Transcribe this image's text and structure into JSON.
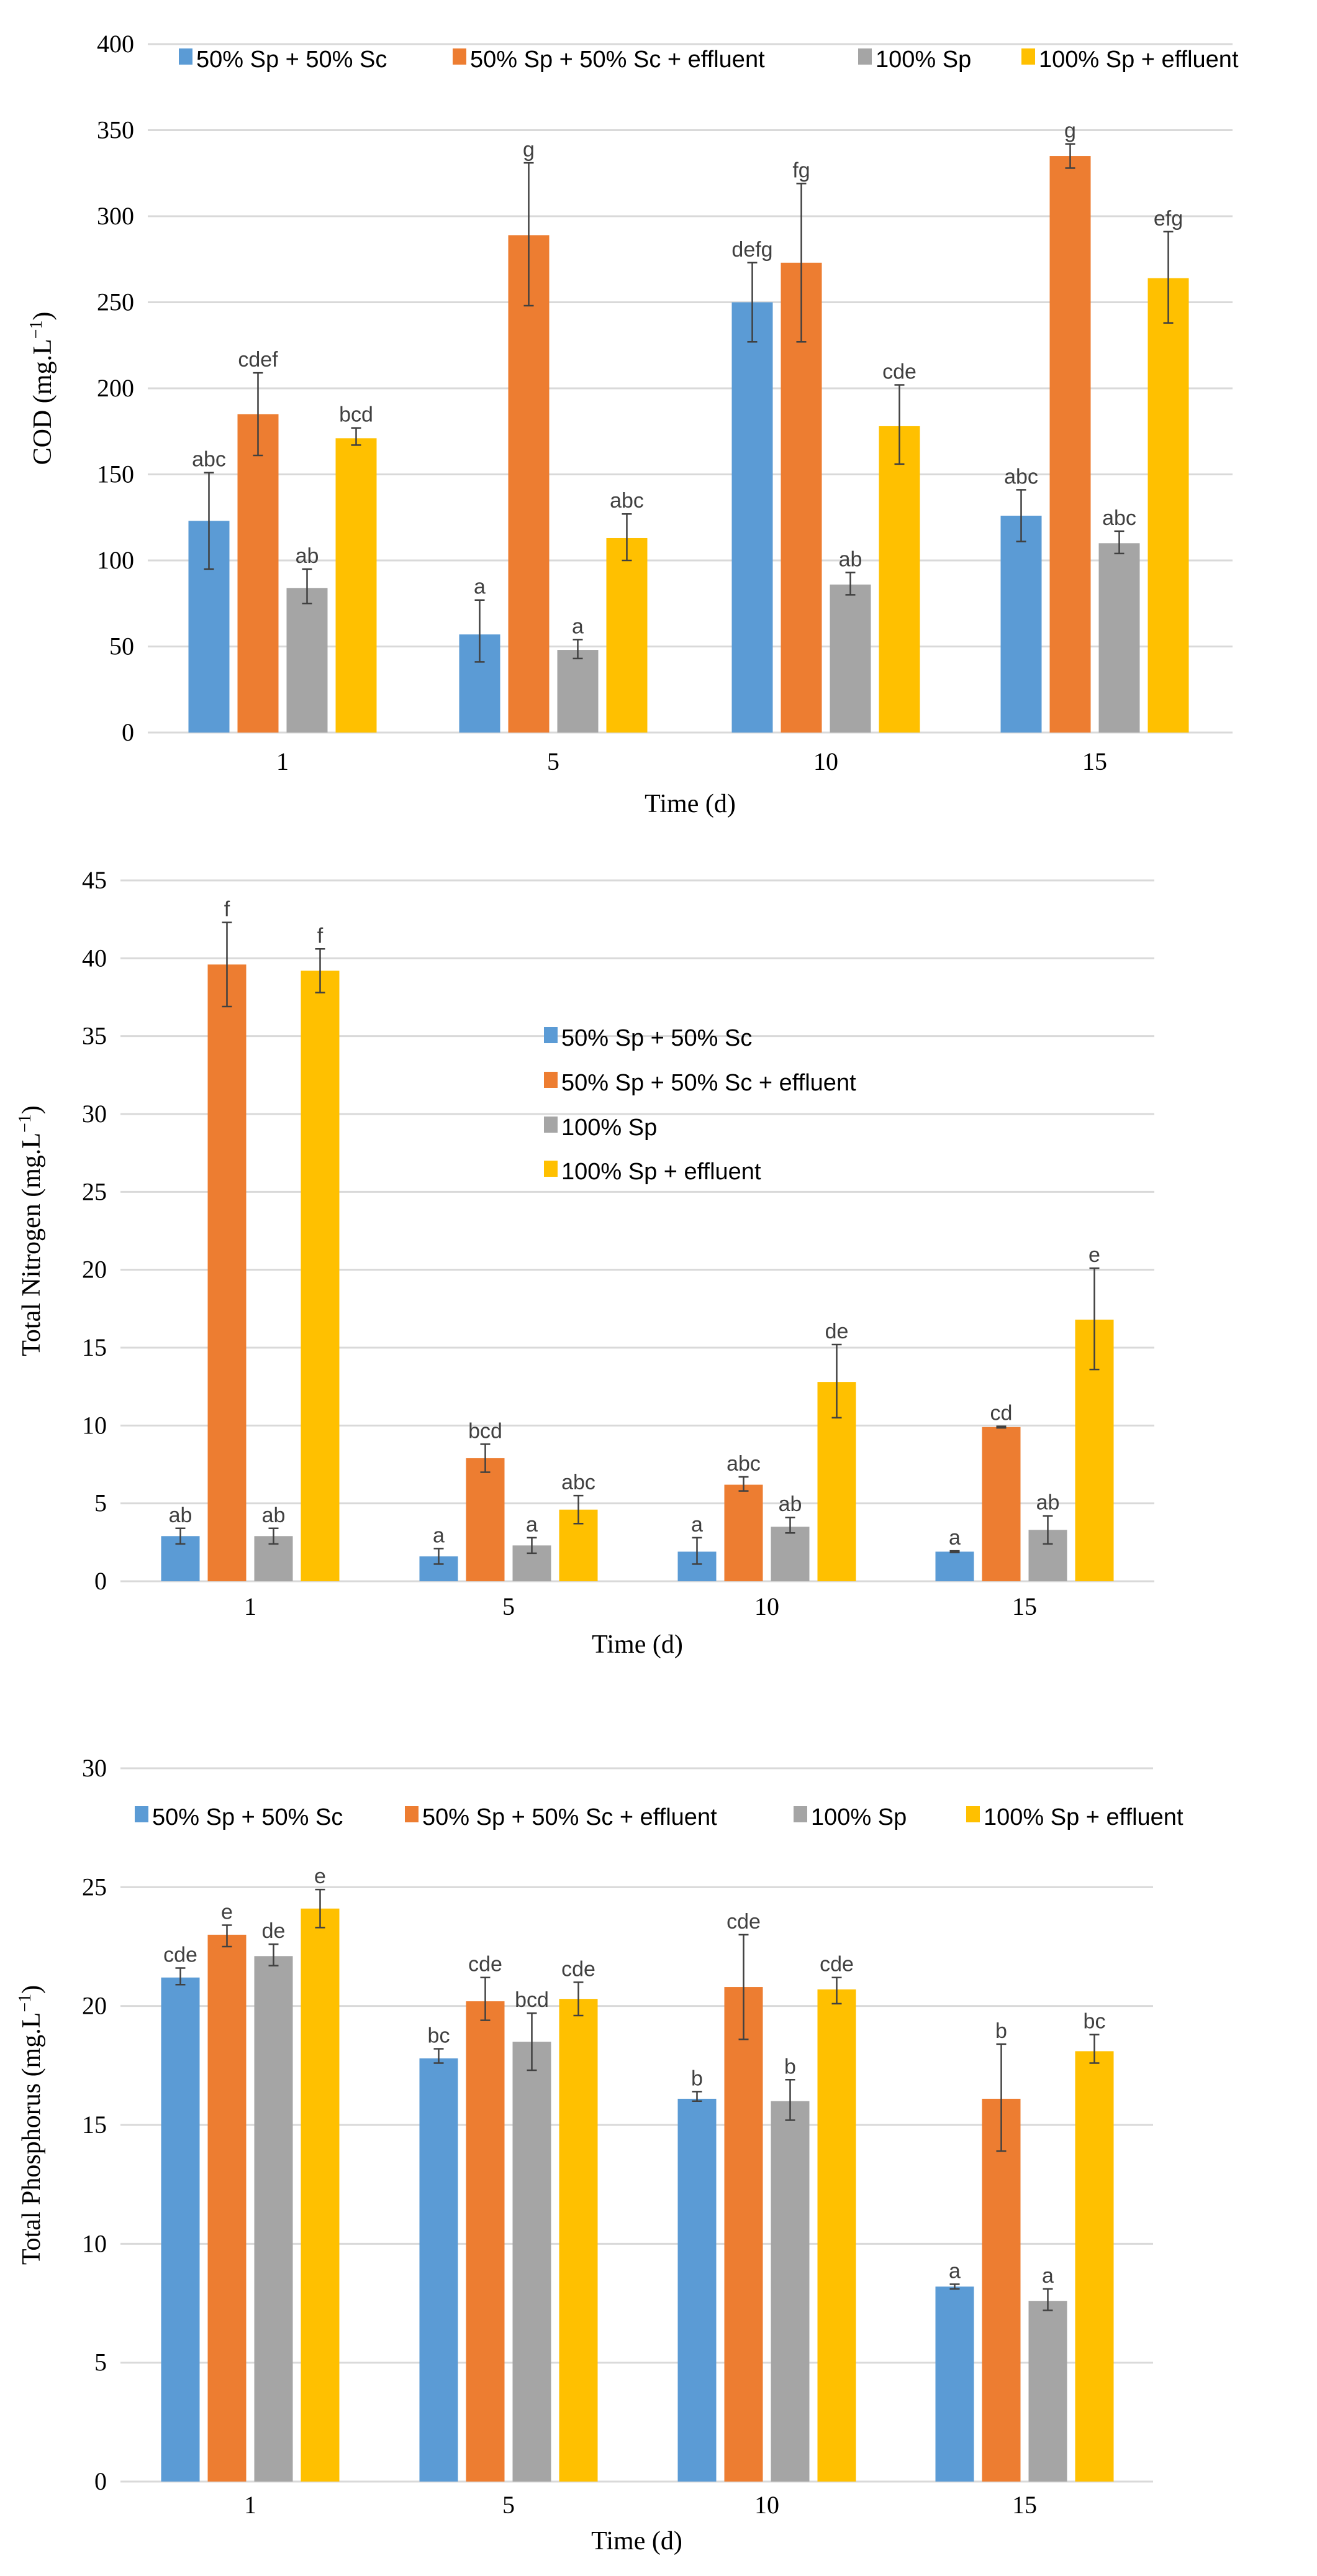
{
  "colors": {
    "s0": "#5B9BD5",
    "s1": "#ED7D31",
    "s2": "#A5A5A5",
    "s3": "#FFC000",
    "grid": "#D9D9D9",
    "err": "#404040"
  },
  "chart_data": [
    {
      "type": "bar",
      "title": "",
      "xlabel": "Time (d)",
      "ylabel": {
        "main": "COD (mg.L",
        "sup": "−1",
        "end": ")"
      },
      "ylim": [
        0,
        400
      ],
      "yticks": [
        "0",
        "50",
        "100",
        "150",
        "200",
        "250",
        "300",
        "350",
        "400"
      ],
      "ytick_values": [
        0,
        50,
        100,
        150,
        200,
        250,
        300,
        350,
        400
      ],
      "grid": true,
      "legend_placement": "top",
      "categories": [
        "1",
        "5",
        "10",
        "15"
      ],
      "series": [
        {
          "name": "50% Sp + 50% Sc",
          "values": [
            123,
            57,
            250,
            126
          ],
          "err_low": [
            95,
            41,
            227,
            111
          ],
          "err_high": [
            151,
            77,
            273,
            141
          ],
          "letters": [
            "abc",
            "a",
            "defg",
            "abc"
          ]
        },
        {
          "name": "50% Sp + 50% Sc + effluent",
          "values": [
            185,
            289,
            273,
            335
          ],
          "err_low": [
            161,
            248,
            227,
            328
          ],
          "err_high": [
            209,
            331,
            319,
            342
          ],
          "letters": [
            "cdef",
            "g",
            "fg",
            "g"
          ]
        },
        {
          "name": "100% Sp",
          "values": [
            84,
            48,
            86,
            110
          ],
          "err_low": [
            75,
            43,
            80,
            104
          ],
          "err_high": [
            95,
            54,
            93,
            117
          ],
          "letters": [
            "ab",
            "a",
            "ab",
            "abc"
          ]
        },
        {
          "name": "100% Sp + effluent",
          "values": [
            171,
            113,
            178,
            264
          ],
          "err_low": [
            167,
            100,
            156,
            238
          ],
          "err_high": [
            177,
            127,
            202,
            291
          ],
          "letters": [
            "bcd",
            "abc",
            "cde",
            "efg"
          ]
        }
      ]
    },
    {
      "type": "bar",
      "title": "",
      "xlabel": "Time (d)",
      "ylabel": {
        "main": "Total Nitrogen  (mg.L",
        "sup": "−1",
        "end": ")"
      },
      "ylim": [
        0,
        45
      ],
      "yticks": [
        "0",
        "5",
        "10",
        "15",
        "20",
        "25",
        "30",
        "35",
        "40",
        "45"
      ],
      "ytick_values": [
        0,
        5,
        10,
        15,
        20,
        25,
        30,
        35,
        40,
        45
      ],
      "grid": true,
      "legend_placement": "center",
      "categories": [
        "1",
        "5",
        "10",
        "15"
      ],
      "series": [
        {
          "name": "50% Sp + 50% Sc",
          "values": [
            2.9,
            1.6,
            1.9,
            1.9
          ],
          "err_low": [
            2.4,
            1.1,
            1.1,
            1.85
          ],
          "err_high": [
            3.4,
            2.1,
            2.8,
            1.95
          ],
          "letters": [
            "ab",
            "a",
            "a",
            "a"
          ]
        },
        {
          "name": "50% Sp + 50% Sc + effluent",
          "values": [
            39.6,
            7.9,
            6.2,
            9.9
          ],
          "err_low": [
            36.9,
            7.0,
            5.8,
            9.85
          ],
          "err_high": [
            42.3,
            8.8,
            6.7,
            9.95
          ],
          "letters": [
            "f",
            "bcd",
            "abc",
            "cd"
          ]
        },
        {
          "name": "100% Sp",
          "values": [
            2.9,
            2.3,
            3.5,
            3.3
          ],
          "err_low": [
            2.4,
            1.8,
            3.1,
            2.4
          ],
          "err_high": [
            3.4,
            2.8,
            4.1,
            4.2
          ],
          "letters": [
            "ab",
            "a",
            "ab",
            "ab"
          ]
        },
        {
          "name": "100% Sp + effluent",
          "values": [
            39.2,
            4.6,
            12.8,
            16.8
          ],
          "err_low": [
            37.8,
            3.7,
            10.5,
            13.6
          ],
          "err_high": [
            40.6,
            5.5,
            15.2,
            20.1
          ],
          "letters": [
            "f",
            "abc",
            "de",
            "e"
          ]
        }
      ]
    },
    {
      "type": "bar",
      "title": "",
      "xlabel": "Time (d)",
      "ylabel": {
        "main": "Total Phosphorus  (mg.L",
        "sup": "−1",
        "end": ")"
      },
      "ylim": [
        0,
        30
      ],
      "yticks": [
        "0",
        "5",
        "10",
        "15",
        "20",
        "25",
        "30"
      ],
      "ytick_values": [
        0,
        5,
        10,
        15,
        20,
        25,
        30
      ],
      "grid": true,
      "legend_placement": "top",
      "categories": [
        "1",
        "5",
        "10",
        "15"
      ],
      "series": [
        {
          "name": "50% Sp + 50% Sc",
          "values": [
            21.2,
            17.8,
            16.1,
            8.2
          ],
          "err_low": [
            20.9,
            17.6,
            16.0,
            8.1
          ],
          "err_high": [
            21.6,
            18.2,
            16.4,
            8.3
          ],
          "letters": [
            "cde",
            "bc",
            "b",
            "a"
          ]
        },
        {
          "name": "50% Sp + 50% Sc + effluent",
          "values": [
            23.0,
            20.2,
            20.8,
            16.1
          ],
          "err_low": [
            22.5,
            19.4,
            18.6,
            13.9
          ],
          "err_high": [
            23.4,
            21.2,
            23.0,
            18.4
          ],
          "letters": [
            "e",
            "cde",
            "cde",
            "b"
          ]
        },
        {
          "name": "100% Sp",
          "values": [
            22.1,
            18.5,
            16.0,
            7.6
          ],
          "err_low": [
            21.7,
            17.3,
            15.2,
            7.2
          ],
          "err_high": [
            22.6,
            19.7,
            16.9,
            8.1
          ],
          "letters": [
            "de",
            "bcd",
            "b",
            "a"
          ]
        },
        {
          "name": "100% Sp + effluent",
          "values": [
            24.1,
            20.3,
            20.7,
            18.1
          ],
          "err_low": [
            23.3,
            19.6,
            20.1,
            17.6
          ],
          "err_high": [
            24.9,
            21.0,
            21.2,
            18.8
          ],
          "letters": [
            "e",
            "cde",
            "cde",
            "bc"
          ]
        }
      ]
    }
  ]
}
